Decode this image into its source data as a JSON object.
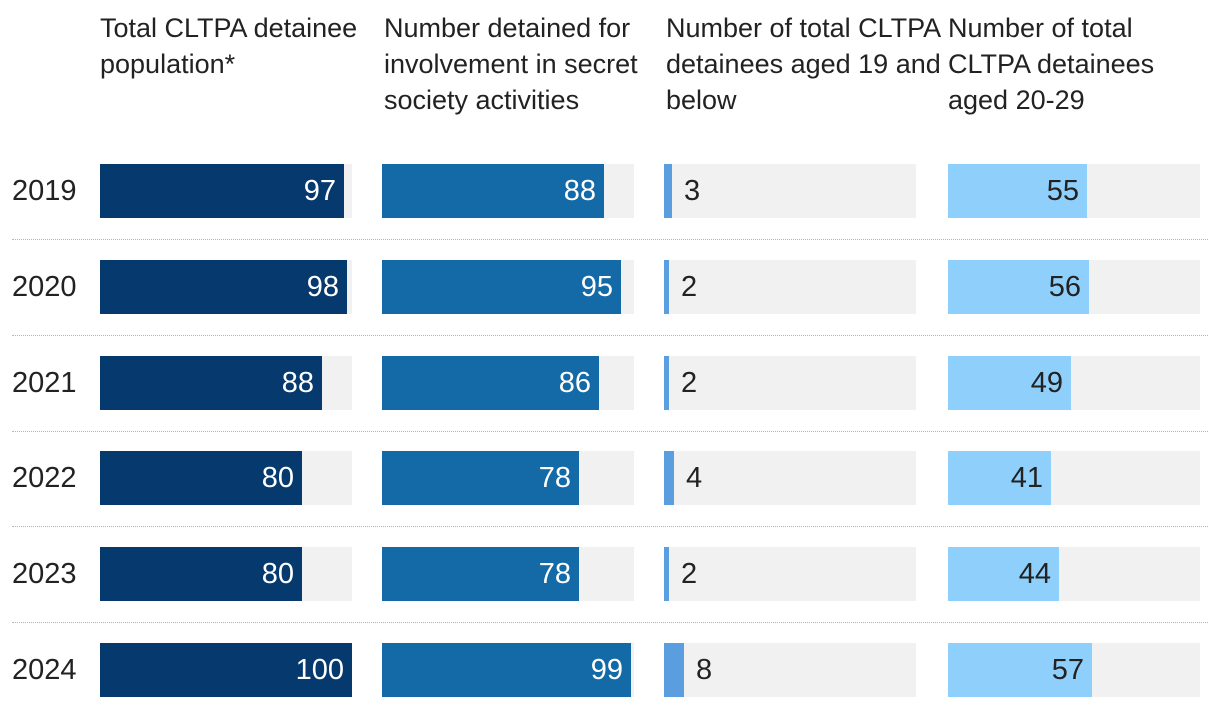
{
  "chart_data": {
    "type": "bar",
    "categories": [
      "2019",
      "2020",
      "2021",
      "2022",
      "2023",
      "2024"
    ],
    "series": [
      {
        "name": "Total CLTPA detainee population*",
        "values": [
          97,
          98,
          88,
          80,
          80,
          100
        ],
        "max": 100,
        "color": "#063a6e",
        "label_style": "inside"
      },
      {
        "name": "Number detained for involvement in secret society activities",
        "values": [
          88,
          95,
          86,
          78,
          78,
          99
        ],
        "max": 100,
        "color": "#136aa6",
        "label_style": "inside"
      },
      {
        "name": "Number of total CLTPA detainees aged 19 and below",
        "values": [
          3,
          2,
          2,
          4,
          2,
          8
        ],
        "max": 100,
        "color": "#5b9ee0",
        "label_style": "outside"
      },
      {
        "name": "Number of total CLTPA detainees aged 20-29",
        "values": [
          55,
          56,
          49,
          41,
          44,
          57
        ],
        "max": 100,
        "color": "#8fcffb",
        "label_style": "inside-dark"
      }
    ],
    "colors": {
      "track": "#f1f1f2",
      "separator": "#b5b5b5"
    },
    "grid": false,
    "legend": "none"
  }
}
